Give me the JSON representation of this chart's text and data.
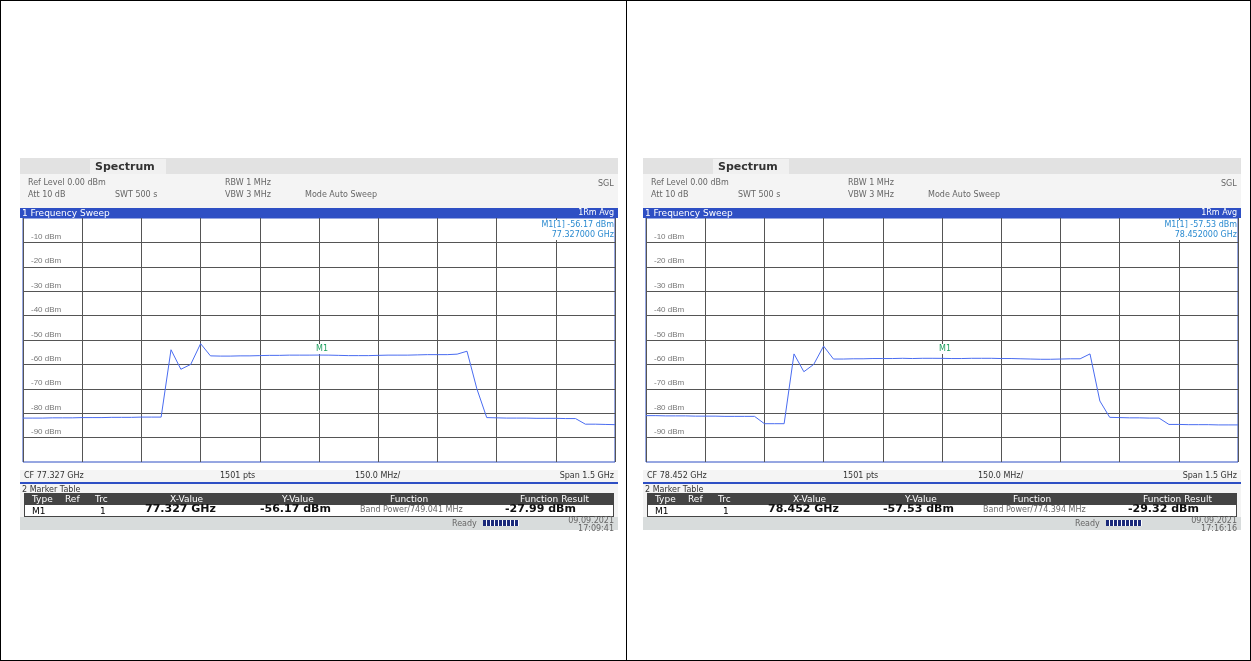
{
  "chart_data": [
    {
      "type": "line",
      "title": "1 Frequency Sweep",
      "categories": [
        null,
        null,
        null,
        null,
        null,
        null,
        null,
        null,
        null,
        null,
        null,
        null,
        null,
        null,
        null,
        null,
        null,
        null,
        null,
        null,
        null,
        null,
        null,
        null,
        null,
        null,
        null,
        null,
        null,
        null,
        null,
        null,
        null,
        null,
        null,
        null,
        null,
        null,
        null,
        null,
        null,
        null,
        null,
        null,
        null,
        null,
        null,
        null,
        null,
        null,
        null,
        null,
        null,
        null,
        null,
        null,
        null,
        null,
        null,
        null,
        null
      ],
      "ylim": [
        -100,
        0
      ],
      "yticks": [
        {
          "value": -10,
          "label": "-10 dBm"
        },
        {
          "value": -20,
          "label": "-20 dBm"
        },
        {
          "value": -30,
          "label": "-30 dBm"
        },
        {
          "value": -40,
          "label": "-40 dBm"
        },
        {
          "value": -50,
          "label": "-50 dBm"
        },
        {
          "value": -60,
          "label": "-60 dBm"
        },
        {
          "value": -70,
          "label": "-70 dBm"
        },
        {
          "value": -80,
          "label": "-80 dBm"
        },
        {
          "value": -90,
          "label": "-90 dBm"
        }
      ],
      "grid": true,
      "marker": "none",
      "line_style": "solid",
      "series": [
        {
          "color": "#4a6cf0",
          "values": [
            -82.0,
            -82.0,
            -82.0,
            -81.9,
            -81.9,
            -81.9,
            -81.8,
            -81.8,
            -81.8,
            -81.7,
            -81.7,
            -81.7,
            -81.6,
            -81.6,
            -81.6,
            -54,
            -62,
            -60,
            -51.5,
            -56.5,
            -56.6,
            -56.6,
            -56.5,
            -56.5,
            -56.4,
            -56.3,
            -56.3,
            -56.2,
            -56.2,
            -56.2,
            -56.17,
            -56.2,
            -56.3,
            -56.4,
            -56.4,
            -56.4,
            -56.3,
            -56.2,
            -56.2,
            -56.2,
            -56.1,
            -56.0,
            -56.0,
            -56.0,
            -55.8,
            -54.6,
            -70,
            -81.8,
            -81.9,
            -82.0,
            -82.0,
            -82.0,
            -82.1,
            -82.1,
            -82.1,
            -82.2,
            -82.2,
            -84.5,
            -84.5,
            -84.6,
            -84.7
          ]
        }
      ],
      "annotations": [
        "Spectrum",
        "Ref Level 0.00 dBm",
        "Att 10 dB",
        "SWT 500 s",
        "RBW 1 MHz",
        "VBW 3 MHz",
        "Mode Auto Sweep",
        "SGL",
        "1Rm Avg",
        "M1[1] -56.17 dBm",
        "77.327000 GHz",
        "CF 77.327 GHz",
        "1501 pts",
        "150.0 MHz/",
        "Span 1.5 GHz",
        "2 Marker Table",
        "Type",
        "Ref",
        "Trc",
        "X-Value",
        "Y-Value",
        "Function",
        "Function Result",
        "M1",
        "1",
        "77.327 GHz",
        "-56.17 dBm",
        "Band Power/749.041 MHz",
        "-27.99 dBm",
        "Ready",
        "09.09.2021",
        "17:09:41",
        "M1"
      ]
    },
    {
      "type": "line",
      "title": "1 Frequency Sweep",
      "categories": [
        null,
        null,
        null,
        null,
        null,
        null,
        null,
        null,
        null,
        null,
        null,
        null,
        null,
        null,
        null,
        null,
        null,
        null,
        null,
        null,
        null,
        null,
        null,
        null,
        null,
        null,
        null,
        null,
        null,
        null,
        null,
        null,
        null,
        null,
        null,
        null,
        null,
        null,
        null,
        null,
        null,
        null,
        null,
        null,
        null,
        null,
        null,
        null,
        null,
        null,
        null,
        null,
        null,
        null,
        null,
        null,
        null,
        null,
        null,
        null,
        null
      ],
      "ylim": [
        -100,
        0
      ],
      "yticks": [
        {
          "value": -10,
          "label": "-10 dBm"
        },
        {
          "value": -20,
          "label": "-20 dBm"
        },
        {
          "value": -30,
          "label": "-30 dBm"
        },
        {
          "value": -40,
          "label": "-40 dBm"
        },
        {
          "value": -50,
          "label": "-50 dBm"
        },
        {
          "value": -60,
          "label": "-60 dBm"
        },
        {
          "value": -70,
          "label": "-70 dBm"
        },
        {
          "value": -80,
          "label": "-80 dBm"
        },
        {
          "value": -90,
          "label": "-90 dBm"
        }
      ],
      "grid": true,
      "marker": "none",
      "line_style": "solid",
      "series": [
        {
          "color": "#4a6cf0",
          "values": [
            -81.0,
            -81.0,
            -81.1,
            -81.1,
            -81.1,
            -81.2,
            -81.2,
            -81.2,
            -81.3,
            -81.3,
            -81.3,
            -81.3,
            -84.3,
            -84.3,
            -84.3,
            -55.7,
            -63,
            -60,
            -52.5,
            -57.8,
            -57.8,
            -57.7,
            -57.7,
            -57.6,
            -57.6,
            -57.6,
            -57.5,
            -57.6,
            -57.5,
            -57.5,
            -57.53,
            -57.6,
            -57.6,
            -57.5,
            -57.5,
            -57.5,
            -57.6,
            -57.6,
            -57.7,
            -57.8,
            -57.9,
            -57.9,
            -57.8,
            -57.7,
            -57.7,
            -55.7,
            -75,
            -81.7,
            -81.8,
            -81.9,
            -81.9,
            -82.0,
            -82.0,
            -84.6,
            -84.6,
            -84.7,
            -84.7,
            -84.7,
            -84.8,
            -84.8,
            -84.8
          ]
        }
      ],
      "annotations": [
        "Spectrum",
        "Ref Level 0.00 dBm",
        "Att 10 dB",
        "SWT 500 s",
        "RBW 1 MHz",
        "VBW 3 MHz",
        "Mode Auto Sweep",
        "SGL",
        "1Rm Avg",
        "M1[1] -57.53 dBm",
        "78.452000 GHz",
        "CF 78.452 GHz",
        "1501 pts",
        "150.0 MHz/",
        "Span 1.5 GHz",
        "2 Marker Table",
        "Type",
        "Ref",
        "Trc",
        "X-Value",
        "Y-Value",
        "Function",
        "Function Result",
        "M1",
        "1",
        "78.452 GHz",
        "-57.53 dBm",
        "Band Power/774.394 MHz",
        "-29.32 dBm",
        "Ready",
        "09.09.2021",
        "17:16:16",
        "M1"
      ]
    }
  ]
}
